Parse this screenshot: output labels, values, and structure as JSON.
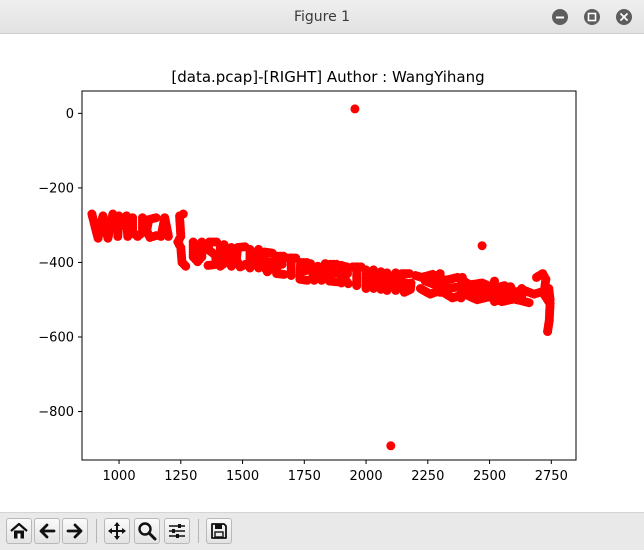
{
  "window": {
    "title": "Figure 1",
    "controls": [
      "minimize-icon",
      "maximize-icon",
      "close-icon"
    ]
  },
  "colors": {
    "marker": "#ff0000",
    "axes": "#000000",
    "titlebar": "#e6e6e6",
    "toolbar": "#e9e9e9",
    "window_button": "#5d5d5d"
  },
  "toolbar": {
    "buttons": [
      {
        "name": "home-icon",
        "label": "Home"
      },
      {
        "name": "back-arrow-icon",
        "label": "Back"
      },
      {
        "name": "forward-arrow-icon",
        "label": "Forward"
      },
      {
        "name": "pan-icon",
        "label": "Pan"
      },
      {
        "name": "zoom-icon",
        "label": "Zoom"
      },
      {
        "name": "configure-subplots-icon",
        "label": "Subplots"
      },
      {
        "name": "save-icon",
        "label": "Save"
      }
    ]
  },
  "chart_data": {
    "type": "scatter",
    "title": "[data.pcap]-[RIGHT] Author : WangYihang",
    "xlabel": "",
    "ylabel": "",
    "xlim": [
      850,
      2850
    ],
    "ylim": [
      -930,
      60
    ],
    "xticks": [
      1000,
      1250,
      1500,
      1750,
      2000,
      2250,
      2500,
      2750
    ],
    "xtick_labels": [
      "1000",
      "1250",
      "1500",
      "1750",
      "2000",
      "2250",
      "2500",
      "2750"
    ],
    "yticks": [
      0,
      -200,
      -400,
      -600,
      -800
    ],
    "ytick_labels": [
      "0",
      "−200",
      "−400",
      "−600",
      "−800"
    ],
    "grid": false,
    "legend": "none",
    "series": [
      {
        "color": "#ff0000",
        "marker": "o",
        "isolated_points": [
          [
            1955,
            12
          ],
          [
            2470,
            -355
          ],
          [
            2100,
            -892
          ],
          [
            2735,
            -585
          ]
        ],
        "stroke_paths": [
          [
            [
              890,
              -270
            ],
            [
              915,
              -335
            ],
            [
              935,
              -275
            ],
            [
              955,
              -335
            ],
            [
              975,
              -270
            ]
          ],
          [
            [
              995,
              -330
            ],
            [
              1000,
              -275
            ],
            [
              1015,
              -300
            ],
            [
              1030,
              -275
            ],
            [
              1035,
              -330
            ]
          ],
          [
            [
              1055,
              -280
            ],
            [
              1055,
              -320
            ],
            [
              1075,
              -330
            ],
            [
              1095,
              -320
            ],
            [
              1095,
              -280
            ]
          ],
          [
            [
              1150,
              -280
            ],
            [
              1120,
              -285
            ],
            [
              1112,
              -315
            ],
            [
              1125,
              -333
            ],
            [
              1150,
              -328
            ]
          ],
          [
            [
              1170,
              -330
            ],
            [
              1185,
              -280
            ],
            [
              1200,
              -330
            ]
          ],
          [
            [
              1260,
              -270
            ],
            [
              1245,
              -275
            ],
            [
              1250,
              -330
            ],
            [
              1238,
              -345
            ],
            [
              1250,
              -360
            ],
            [
              1255,
              -400
            ],
            [
              1270,
              -410
            ]
          ],
          [
            [
              1300,
              -345
            ],
            [
              1300,
              -385
            ],
            [
              1318,
              -398
            ],
            [
              1335,
              -385
            ],
            [
              1335,
              -345
            ]
          ],
          [
            [
              1395,
              -345
            ],
            [
              1365,
              -345
            ],
            [
              1360,
              -365
            ],
            [
              1390,
              -380
            ],
            [
              1395,
              -405
            ],
            [
              1360,
              -408
            ]
          ],
          [
            [
              1410,
              -355
            ],
            [
              1410,
              -410
            ],
            [
              1432,
              -400
            ],
            [
              1430,
              -382
            ],
            [
              1410,
              -380
            ],
            [
              1435,
              -365
            ],
            [
              1425,
              -352
            ],
            [
              1410,
              -355
            ]
          ],
          [
            [
              1455,
              -360
            ],
            [
              1455,
              -410
            ]
          ],
          [
            [
              1510,
              -358
            ],
            [
              1480,
              -360
            ],
            [
              1475,
              -392
            ],
            [
              1490,
              -412
            ],
            [
              1512,
              -405
            ]
          ],
          [
            [
              1530,
              -415
            ],
            [
              1530,
              -365
            ],
            [
              1565,
              -415
            ],
            [
              1565,
              -365
            ]
          ],
          [
            [
              1620,
              -375
            ],
            [
              1590,
              -372
            ],
            [
              1583,
              -405
            ],
            [
              1600,
              -425
            ],
            [
              1622,
              -412
            ],
            [
              1622,
              -398
            ],
            [
              1608,
              -398
            ]
          ],
          [
            [
              1665,
              -383
            ],
            [
              1640,
              -383
            ],
            [
              1638,
              -430
            ],
            [
              1668,
              -432
            ]
          ],
          [
            [
              1640,
              -405
            ],
            [
              1660,
              -405
            ]
          ],
          [
            [
              1680,
              -388
            ],
            [
              1715,
              -388
            ]
          ],
          [
            [
              1697,
              -388
            ],
            [
              1697,
              -435
            ]
          ],
          [
            [
              1760,
              -400
            ],
            [
              1735,
              -400
            ],
            [
              1732,
              -445
            ],
            [
              1762,
              -448
            ]
          ],
          [
            [
              1735,
              -422
            ],
            [
              1755,
              -422
            ]
          ],
          [
            [
              1775,
              -403
            ],
            [
              1790,
              -448
            ],
            [
              1805,
              -410
            ],
            [
              1820,
              -448
            ],
            [
              1835,
              -403
            ]
          ],
          [
            [
              1880,
              -405
            ],
            [
              1855,
              -405
            ],
            [
              1852,
              -450
            ],
            [
              1882,
              -452
            ]
          ],
          [
            [
              1855,
              -428
            ],
            [
              1875,
              -428
            ]
          ],
          [
            [
              1900,
              -455
            ],
            [
              1900,
              -408
            ],
            [
              1922,
              -412
            ],
            [
              1925,
              -430
            ],
            [
              1902,
              -433
            ],
            [
              1928,
              -457
            ]
          ],
          [
            [
              1945,
              -412
            ],
            [
              1980,
              -412
            ]
          ],
          [
            [
              1962,
              -412
            ],
            [
              1962,
              -462
            ]
          ],
          [
            [
              2000,
              -420
            ],
            [
              2000,
              -470
            ]
          ],
          [
            [
              2000,
              -445
            ],
            [
              2030,
              -445
            ]
          ],
          [
            [
              2030,
              -420
            ],
            [
              2030,
              -470
            ]
          ],
          [
            [
              2060,
              -425
            ],
            [
              2060,
              -472
            ]
          ],
          [
            [
              2085,
              -475
            ],
            [
              2085,
              -428
            ],
            [
              2120,
              -475
            ],
            [
              2120,
              -428
            ]
          ],
          [
            [
              2175,
              -430
            ],
            [
              2145,
              -430
            ],
            [
              2140,
              -460
            ],
            [
              2155,
              -480
            ],
            [
              2180,
              -472
            ],
            [
              2182,
              -455
            ],
            [
              2165,
              -455
            ]
          ],
          [
            [
              2200,
              -435
            ],
            [
              2225,
              -440
            ],
            [
              2270,
              -432
            ],
            [
              2320,
              -448
            ],
            [
              2370,
              -440
            ],
            [
              2420,
              -460
            ],
            [
              2470,
              -455
            ],
            [
              2520,
              -470
            ],
            [
              2560,
              -462
            ],
            [
              2600,
              -480
            ],
            [
              2640,
              -475
            ],
            [
              2680,
              -485
            ],
            [
              2705,
              -480
            ]
          ],
          [
            [
              2220,
              -470
            ],
            [
              2260,
              -485
            ],
            [
              2300,
              -475
            ],
            [
              2350,
              -495
            ],
            [
              2400,
              -485
            ],
            [
              2450,
              -500
            ],
            [
              2500,
              -492
            ],
            [
              2550,
              -505
            ],
            [
              2600,
              -498
            ],
            [
              2660,
              -508
            ]
          ],
          [
            [
              2240,
              -450
            ],
            [
              2280,
              -460
            ],
            [
              2330,
              -470
            ],
            [
              2380,
              -465
            ],
            [
              2430,
              -478
            ],
            [
              2480,
              -478
            ],
            [
              2530,
              -488
            ],
            [
              2580,
              -482
            ],
            [
              2630,
              -492
            ]
          ],
          [
            [
              2300,
              -430
            ],
            [
              2300,
              -480
            ]
          ],
          [
            [
              2390,
              -440
            ],
            [
              2385,
              -495
            ]
          ],
          [
            [
              2520,
              -450
            ],
            [
              2520,
              -505
            ]
          ],
          [
            [
              2585,
              -465
            ],
            [
              2610,
              -500
            ],
            [
              2630,
              -470
            ]
          ],
          [
            [
              2690,
              -440
            ],
            [
              2715,
              -430
            ],
            [
              2728,
              -445
            ],
            [
              2720,
              -485
            ],
            [
              2740,
              -470
            ],
            [
              2745,
              -500
            ]
          ],
          [
            [
              2715,
              -480
            ],
            [
              2745,
              -510
            ],
            [
              2742,
              -555
            ],
            [
              2735,
              -585
            ]
          ]
        ]
      }
    ]
  }
}
